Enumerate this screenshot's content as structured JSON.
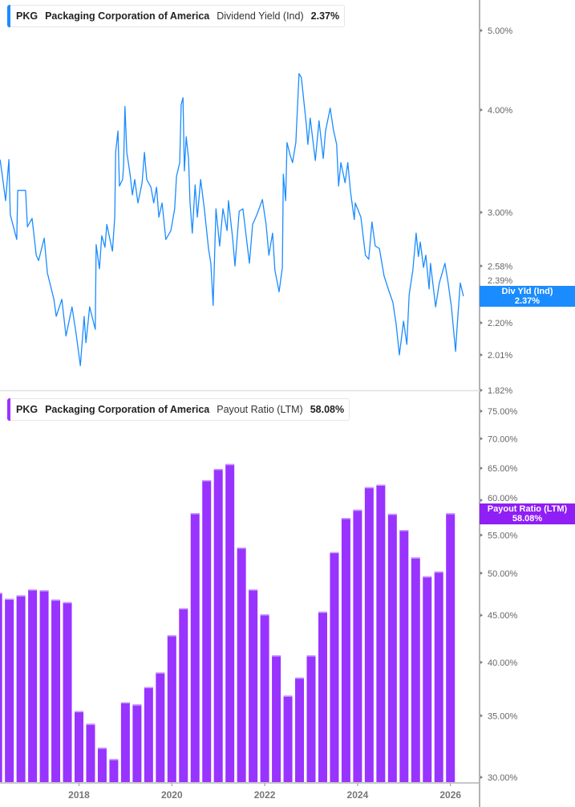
{
  "colors": {
    "yield_line": "#1a8cff",
    "payout_bars": "#9933ff",
    "payout_badge": "#8f1ff5",
    "axis": "#b3b3b3"
  },
  "chart_data": [
    {
      "type": "line",
      "legend": {
        "ticker": "PKG",
        "company": "Packaging Corporation of America",
        "metric": "Dividend Yield (Ind)",
        "value": "2.37%"
      },
      "badge": {
        "label": "Div Yld (Ind)",
        "value": "2.37%"
      },
      "y_scale": "log",
      "ylim": [
        1.82,
        5.4
      ],
      "y_ticks": [
        {
          "value": 5.0,
          "label": "5.00%"
        },
        {
          "value": 4.0,
          "label": "4.00%"
        },
        {
          "value": 3.0,
          "label": "3.00%"
        },
        {
          "value": 2.58,
          "label": "2.58%"
        },
        {
          "value": 2.39,
          "label": "2.39%"
        },
        {
          "value": 2.2,
          "label": "2.20%"
        },
        {
          "value": 2.01,
          "label": "2.01%"
        },
        {
          "value": 1.82,
          "label": "1.82%"
        }
      ],
      "points": [
        [
          2016.3,
          3.48
        ],
        [
          2016.35,
          3.32
        ],
        [
          2016.42,
          3.1
        ],
        [
          2016.49,
          3.48
        ],
        [
          2016.52,
          2.98
        ],
        [
          2016.66,
          2.78
        ],
        [
          2016.68,
          3.19
        ],
        [
          2016.85,
          3.19
        ],
        [
          2016.89,
          2.88
        ],
        [
          2016.99,
          2.95
        ],
        [
          2017.08,
          2.66
        ],
        [
          2017.13,
          2.62
        ],
        [
          2017.25,
          2.79
        ],
        [
          2017.32,
          2.53
        ],
        [
          2017.46,
          2.35
        ],
        [
          2017.51,
          2.24
        ],
        [
          2017.63,
          2.35
        ],
        [
          2017.72,
          2.12
        ],
        [
          2017.85,
          2.3
        ],
        [
          2017.94,
          2.13
        ],
        [
          2018.03,
          1.95
        ],
        [
          2018.11,
          2.24
        ],
        [
          2018.15,
          2.08
        ],
        [
          2018.23,
          2.3
        ],
        [
          2018.35,
          2.16
        ],
        [
          2018.37,
          2.74
        ],
        [
          2018.44,
          2.56
        ],
        [
          2018.49,
          2.81
        ],
        [
          2018.56,
          2.72
        ],
        [
          2018.6,
          2.9
        ],
        [
          2018.72,
          2.69
        ],
        [
          2018.77,
          2.96
        ],
        [
          2018.79,
          3.55
        ],
        [
          2018.84,
          3.77
        ],
        [
          2018.87,
          3.23
        ],
        [
          2018.94,
          3.29
        ],
        [
          2018.96,
          3.42
        ],
        [
          2018.99,
          4.04
        ],
        [
          2019.03,
          3.55
        ],
        [
          2019.1,
          3.34
        ],
        [
          2019.15,
          3.15
        ],
        [
          2019.2,
          3.29
        ],
        [
          2019.27,
          3.08
        ],
        [
          2019.36,
          3.26
        ],
        [
          2019.41,
          3.55
        ],
        [
          2019.46,
          3.29
        ],
        [
          2019.55,
          3.22
        ],
        [
          2019.61,
          3.08
        ],
        [
          2019.67,
          3.22
        ],
        [
          2019.72,
          2.96
        ],
        [
          2019.79,
          3.08
        ],
        [
          2019.87,
          2.78
        ],
        [
          2019.98,
          2.85
        ],
        [
          2020.06,
          3.03
        ],
        [
          2020.1,
          3.32
        ],
        [
          2020.17,
          3.45
        ],
        [
          2020.2,
          4.06
        ],
        [
          2020.24,
          4.14
        ],
        [
          2020.27,
          3.37
        ],
        [
          2020.31,
          3.71
        ],
        [
          2020.36,
          3.49
        ],
        [
          2020.39,
          3.09
        ],
        [
          2020.44,
          2.83
        ],
        [
          2020.5,
          3.24
        ],
        [
          2020.55,
          2.96
        ],
        [
          2020.62,
          3.29
        ],
        [
          2020.7,
          3.03
        ],
        [
          2020.79,
          2.71
        ],
        [
          2020.84,
          2.6
        ],
        [
          2020.89,
          2.31
        ],
        [
          2020.95,
          3.03
        ],
        [
          2021.03,
          2.73
        ],
        [
          2021.1,
          3.03
        ],
        [
          2021.19,
          2.85
        ],
        [
          2021.22,
          3.1
        ],
        [
          2021.31,
          2.79
        ],
        [
          2021.36,
          2.58
        ],
        [
          2021.45,
          3.01
        ],
        [
          2021.53,
          3.03
        ],
        [
          2021.67,
          2.6
        ],
        [
          2021.74,
          2.9
        ],
        [
          2021.83,
          2.98
        ],
        [
          2021.95,
          3.11
        ],
        [
          2022.03,
          2.9
        ],
        [
          2022.09,
          2.66
        ],
        [
          2022.17,
          2.83
        ],
        [
          2022.22,
          2.55
        ],
        [
          2022.31,
          2.4
        ],
        [
          2022.38,
          2.57
        ],
        [
          2022.4,
          3.34
        ],
        [
          2022.45,
          3.1
        ],
        [
          2022.48,
          3.65
        ],
        [
          2022.55,
          3.52
        ],
        [
          2022.6,
          3.45
        ],
        [
          2022.67,
          3.65
        ],
        [
          2022.74,
          4.43
        ],
        [
          2022.79,
          4.38
        ],
        [
          2022.83,
          4.16
        ],
        [
          2022.9,
          3.82
        ],
        [
          2022.93,
          3.63
        ],
        [
          2022.98,
          3.91
        ],
        [
          2023.09,
          3.47
        ],
        [
          2023.17,
          3.88
        ],
        [
          2023.26,
          3.49
        ],
        [
          2023.31,
          3.77
        ],
        [
          2023.41,
          4.02
        ],
        [
          2023.48,
          3.78
        ],
        [
          2023.55,
          3.63
        ],
        [
          2023.59,
          3.23
        ],
        [
          2023.64,
          3.45
        ],
        [
          2023.73,
          3.26
        ],
        [
          2023.79,
          3.45
        ],
        [
          2023.85,
          3.17
        ],
        [
          2023.93,
          2.94
        ],
        [
          2023.95,
          3.08
        ],
        [
          2024.07,
          2.96
        ],
        [
          2024.17,
          2.66
        ],
        [
          2024.24,
          2.63
        ],
        [
          2024.31,
          2.92
        ],
        [
          2024.38,
          2.73
        ],
        [
          2024.47,
          2.71
        ],
        [
          2024.57,
          2.51
        ],
        [
          2024.68,
          2.4
        ],
        [
          2024.76,
          2.33
        ],
        [
          2024.83,
          2.19
        ],
        [
          2024.9,
          2.01
        ],
        [
          2024.99,
          2.21
        ],
        [
          2025.06,
          2.07
        ],
        [
          2025.11,
          2.38
        ],
        [
          2025.19,
          2.55
        ],
        [
          2025.26,
          2.83
        ],
        [
          2025.31,
          2.65
        ],
        [
          2025.35,
          2.76
        ],
        [
          2025.42,
          2.57
        ],
        [
          2025.47,
          2.66
        ],
        [
          2025.54,
          2.42
        ],
        [
          2025.57,
          2.6
        ],
        [
          2025.68,
          2.3
        ],
        [
          2025.76,
          2.46
        ],
        [
          2025.88,
          2.6
        ],
        [
          2025.95,
          2.46
        ],
        [
          2026.02,
          2.3
        ],
        [
          2026.11,
          2.03
        ],
        [
          2026.14,
          2.16
        ],
        [
          2026.21,
          2.46
        ],
        [
          2026.28,
          2.37
        ]
      ]
    },
    {
      "type": "bar",
      "legend": {
        "ticker": "PKG",
        "company": "Packaging Corporation of America",
        "metric": "Payout Ratio (LTM)",
        "value": "58.08%"
      },
      "badge": {
        "label": "Payout Ratio (LTM)",
        "value": "58.08%"
      },
      "y_scale": "log",
      "ylim": [
        30,
        77
      ],
      "y_ticks": [
        {
          "value": 75,
          "label": "75.00%"
        },
        {
          "value": 70,
          "label": "70.00%"
        },
        {
          "value": 65,
          "label": "65.00%"
        },
        {
          "value": 60,
          "label": "60.00%"
        },
        {
          "value": 55,
          "label": "55.00%"
        },
        {
          "value": 50,
          "label": "50.00%"
        },
        {
          "value": 45,
          "label": "45.00%"
        },
        {
          "value": 40,
          "label": "40.00%"
        },
        {
          "value": 35,
          "label": "35.00%"
        },
        {
          "value": 30,
          "label": "30.00%"
        }
      ],
      "x": [
        2016.25,
        2016.5,
        2016.75,
        2017.0,
        2017.25,
        2017.5,
        2017.75,
        2018.0,
        2018.25,
        2018.5,
        2018.75,
        2019.0,
        2019.25,
        2019.5,
        2019.75,
        2020.0,
        2020.25,
        2020.5,
        2020.75,
        2021.0,
        2021.25,
        2021.5,
        2021.75,
        2022.0,
        2022.25,
        2022.5,
        2022.75,
        2023.0,
        2023.25,
        2023.5,
        2023.75,
        2024.0,
        2024.25,
        2024.5,
        2024.75,
        2025.0,
        2025.25,
        2025.5,
        2025.75,
        2026.0
      ],
      "values": [
        47.6,
        46.9,
        47.3,
        48.0,
        47.9,
        46.8,
        46.5,
        35.4,
        34.3,
        32.3,
        31.4,
        36.2,
        36.0,
        37.6,
        39.0,
        42.8,
        45.8,
        58.1,
        63.1,
        64.9,
        65.7,
        53.3,
        48.0,
        45.1,
        40.7,
        36.8,
        38.5,
        40.7,
        45.4,
        52.7,
        57.4,
        58.6,
        62.0,
        62.4,
        58.0,
        55.7,
        52.0,
        49.6,
        50.2,
        58.08
      ]
    }
  ],
  "x_axis": {
    "ticks": [
      {
        "value": 2018,
        "label": "2018"
      },
      {
        "value": 2020,
        "label": "2020"
      },
      {
        "value": 2022,
        "label": "2022"
      },
      {
        "value": 2024,
        "label": "2024"
      },
      {
        "value": 2026,
        "label": "2026"
      }
    ]
  }
}
